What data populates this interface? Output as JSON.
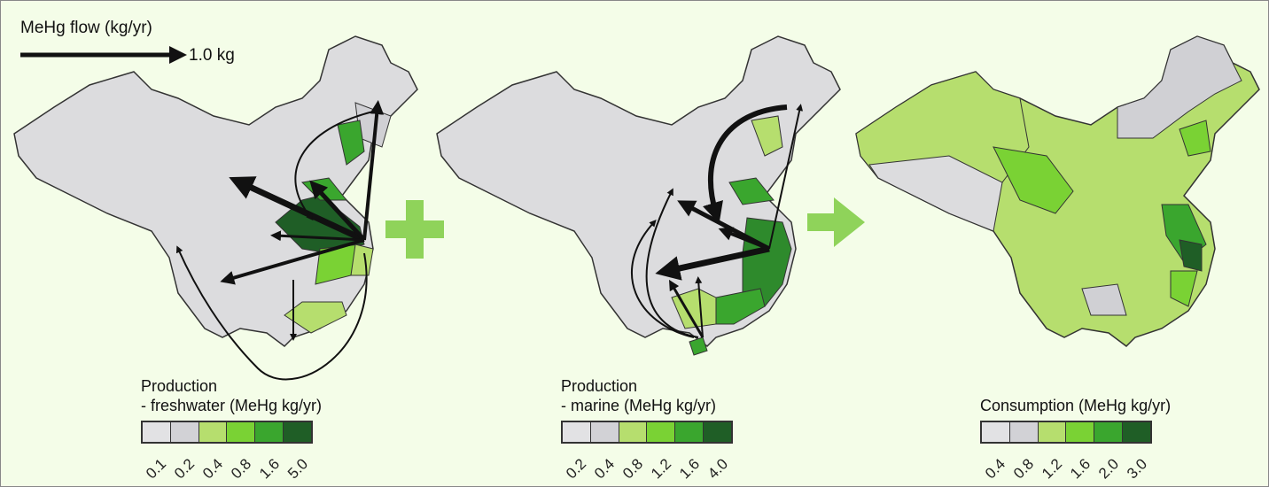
{
  "flow_legend": {
    "title": "MeHg flow (kg/yr)",
    "scale_label": "1.0 kg"
  },
  "panels": [
    {
      "label_line1": "Production",
      "label_line2": "- freshwater  (MeHg kg/yr)",
      "ticks": [
        "0.1",
        "0.2",
        "0.4",
        "0.8",
        "1.6",
        "5.0"
      ]
    },
    {
      "label_line1": "Production",
      "label_line2": "- marine  (MeHg kg/yr)",
      "ticks": [
        "0.2",
        "0.4",
        "0.8",
        "1.2",
        "1.6",
        "4.0"
      ]
    },
    {
      "label_line1": "Consumption (MeHg kg/yr)",
      "label_line2": "",
      "ticks": [
        "0.4",
        "0.8",
        "1.2",
        "1.6",
        "2.0",
        "3.0"
      ]
    }
  ],
  "colors": {
    "background": "#f4fde8",
    "scale": [
      "#e2e2e4",
      "#d2d2d6",
      "#b6de6e",
      "#7ad234",
      "#3aa62e",
      "#1f5e26"
    ],
    "plus_sign": "#8fd35a",
    "arrow_right": "#8fd35a"
  },
  "operators": {
    "plus": "plus-icon",
    "arrow": "arrow-right-icon"
  }
}
